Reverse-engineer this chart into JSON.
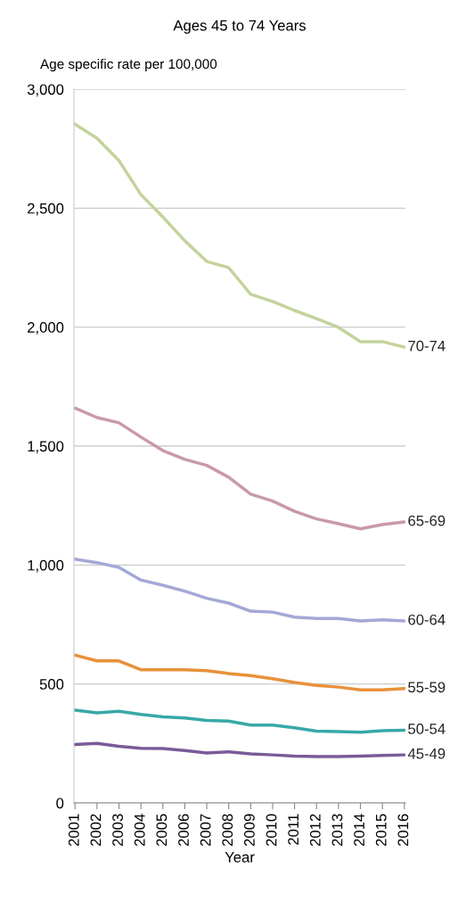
{
  "chart_data": {
    "type": "line",
    "title": "Ages 45 to 74 Years",
    "ylabel": "Age specific rate per 100,000",
    "xlabel": "Year",
    "categories": [
      "2001",
      "2002",
      "2003",
      "2004",
      "2005",
      "2006",
      "2007",
      "2008",
      "2009",
      "2010",
      "2011",
      "2012",
      "2013",
      "2014",
      "2015",
      "2016"
    ],
    "series": [
      {
        "name": "70-74",
        "color": "#c3d39c",
        "values": [
          2853,
          2794,
          2700,
          2557,
          2463,
          2363,
          2276,
          2250,
          2138,
          2108,
          2070,
          2036,
          1999,
          1939,
          1939,
          1916
        ]
      },
      {
        "name": "65-69",
        "color": "#c899ab",
        "values": [
          1660,
          1620,
          1598,
          1538,
          1481,
          1444,
          1419,
          1369,
          1298,
          1269,
          1226,
          1194,
          1174,
          1152,
          1170,
          1181
        ]
      },
      {
        "name": "60-64",
        "color": "#a3a8d6",
        "values": [
          1025,
          1010,
          990,
          937,
          915,
          890,
          860,
          840,
          806,
          802,
          781,
          775,
          775,
          765,
          770,
          765
        ]
      },
      {
        "name": "55-59",
        "color": "#e8913a",
        "values": [
          621,
          597,
          597,
          560,
          560,
          560,
          556,
          544,
          535,
          522,
          506,
          494,
          487,
          475,
          475,
          481
        ]
      },
      {
        "name": "50-54",
        "color": "#38a8a8",
        "values": [
          390,
          379,
          385,
          372,
          362,
          357,
          347,
          344,
          327,
          327,
          316,
          302,
          300,
          297,
          304,
          306
        ]
      },
      {
        "name": "45-49",
        "color": "#7a5b98",
        "values": [
          246,
          250,
          238,
          230,
          229,
          220,
          210,
          215,
          206,
          202,
          197,
          195,
          195,
          197,
          200,
          202
        ]
      }
    ],
    "ylim": [
      0,
      3000
    ],
    "yticks": [
      0,
      {
        "value": 500,
        "label": "500"
      },
      {
        "value": 1000,
        "label": "1,000"
      },
      {
        "value": 1500,
        "label": "1,500"
      },
      {
        "value": 2000,
        "label": "2,000"
      },
      {
        "value": 2500,
        "label": "2,500"
      },
      {
        "value": 3000,
        "label": "3,000"
      }
    ],
    "grid": "y"
  }
}
